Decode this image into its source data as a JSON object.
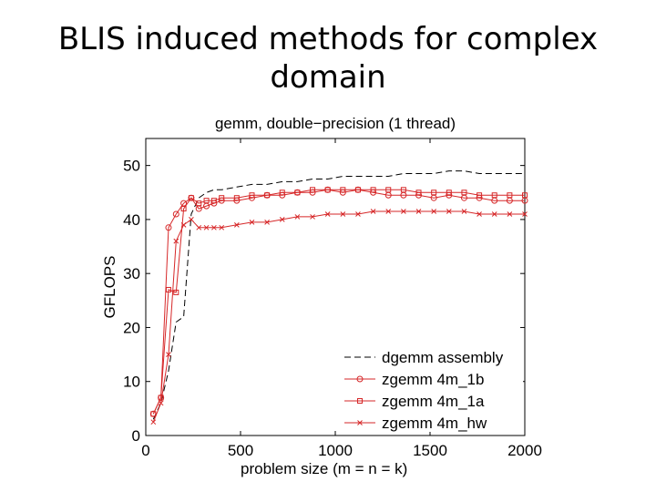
{
  "slide": {
    "title_line1": "BLIS induced methods for complex",
    "title_line2": "domain"
  },
  "chart_data": {
    "type": "line",
    "title": "gemm, double−precision (1 thread)",
    "xlabel": "problem size (m = n = k)",
    "ylabel": "GFLOPS",
    "xlim": [
      0,
      2000
    ],
    "ylim": [
      0,
      55
    ],
    "xticks": [
      0,
      500,
      1000,
      1500,
      2000
    ],
    "yticks": [
      0,
      10,
      20,
      30,
      40,
      50
    ],
    "legend_position": "bottom-right",
    "series": [
      {
        "name": "dgemm assembly",
        "color": "#000000",
        "style": "dash",
        "marker": "none",
        "x": [
          40,
          80,
          120,
          160,
          200,
          240,
          280,
          320,
          360,
          400,
          480,
          560,
          640,
          720,
          800,
          880,
          960,
          1040,
          1120,
          1200,
          1280,
          1360,
          1440,
          1520,
          1600,
          1680,
          1760,
          1840,
          1920,
          2000
        ],
        "y": [
          3,
          6,
          12,
          21,
          22,
          41,
          44,
          45,
          45.5,
          45.5,
          46,
          46.5,
          46.5,
          47,
          47,
          47.5,
          47.5,
          48,
          48,
          48,
          48,
          48.5,
          48.5,
          48.5,
          49,
          49,
          48.5,
          48.5,
          48.5,
          48.5
        ]
      },
      {
        "name": "zgemm 4m_1b",
        "color": "#d62728",
        "style": "solid",
        "marker": "circle",
        "x": [
          40,
          80,
          120,
          160,
          200,
          240,
          280,
          320,
          360,
          400,
          480,
          560,
          640,
          720,
          800,
          880,
          960,
          1040,
          1120,
          1200,
          1280,
          1360,
          1440,
          1520,
          1600,
          1680,
          1760,
          1840,
          1920,
          2000
        ],
        "y": [
          4,
          7,
          38.5,
          41,
          43,
          44,
          42,
          42.5,
          43,
          43.5,
          43.5,
          44,
          44.5,
          44.5,
          45,
          45,
          45.5,
          45,
          45.5,
          45,
          44.5,
          44.5,
          44.5,
          44,
          44.5,
          44,
          44,
          43.5,
          43.5,
          43.5
        ]
      },
      {
        "name": "zgemm 4m_1a",
        "color": "#d62728",
        "style": "solid",
        "marker": "square",
        "x": [
          40,
          80,
          120,
          160,
          200,
          240,
          280,
          320,
          360,
          400,
          480,
          560,
          640,
          720,
          800,
          880,
          960,
          1040,
          1120,
          1200,
          1280,
          1360,
          1440,
          1520,
          1600,
          1680,
          1760,
          1840,
          1920,
          2000
        ],
        "y": [
          4,
          7,
          27,
          26.5,
          42,
          44,
          43,
          43.5,
          43.5,
          44,
          44,
          44.5,
          44.5,
          45,
          45,
          45.5,
          45.5,
          45.5,
          45.5,
          45.5,
          45.5,
          45.5,
          45,
          45,
          45,
          45,
          44.5,
          44.5,
          44.5,
          44.5
        ]
      },
      {
        "name": "zgemm 4m_hw",
        "color": "#d62728",
        "style": "solid",
        "marker": "x",
        "x": [
          40,
          80,
          120,
          160,
          200,
          240,
          280,
          320,
          360,
          400,
          480,
          560,
          640,
          720,
          800,
          880,
          960,
          1040,
          1120,
          1200,
          1280,
          1360,
          1440,
          1520,
          1600,
          1680,
          1760,
          1840,
          1920,
          2000
        ],
        "y": [
          2.5,
          6,
          15,
          36,
          39,
          40,
          38.5,
          38.5,
          38.5,
          38.5,
          39,
          39.5,
          39.5,
          40,
          40.5,
          40.5,
          41,
          41,
          41,
          41.5,
          41.5,
          41.5,
          41.5,
          41.5,
          41.5,
          41.5,
          41,
          41,
          41,
          41
        ]
      }
    ]
  }
}
